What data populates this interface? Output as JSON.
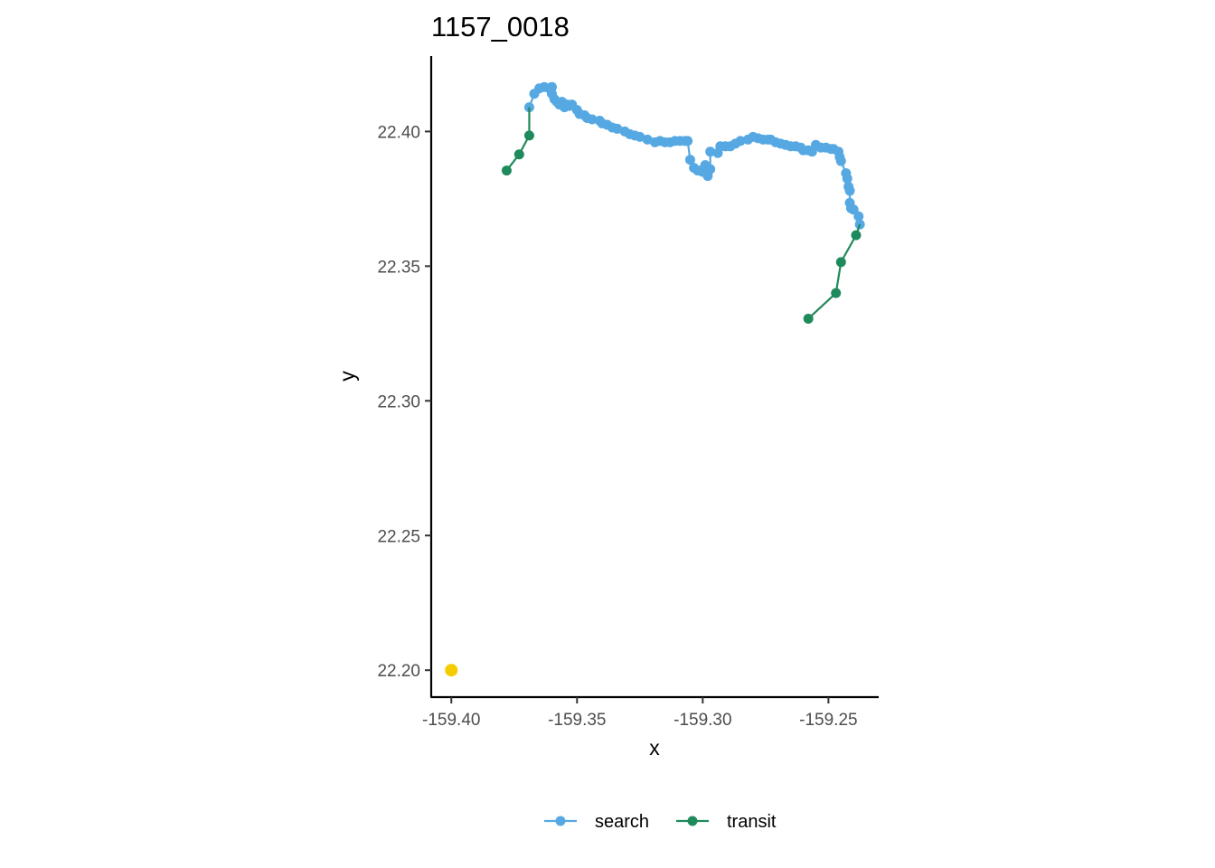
{
  "chart_data": {
    "type": "scatter",
    "title": "1157_0018",
    "xlabel": "x",
    "ylabel": "y",
    "xlim": [
      -159.408,
      -159.23
    ],
    "ylim": [
      22.19,
      22.428
    ],
    "x_ticks": [
      {
        "value": -159.4,
        "label": "-159.40"
      },
      {
        "value": -159.35,
        "label": "-159.35"
      },
      {
        "value": -159.3,
        "label": "-159.30"
      },
      {
        "value": -159.25,
        "label": "-159.25"
      }
    ],
    "y_ticks": [
      {
        "value": 22.2,
        "label": "22.20"
      },
      {
        "value": 22.25,
        "label": "22.25"
      },
      {
        "value": 22.3,
        "label": "22.30"
      },
      {
        "value": 22.35,
        "label": "22.35"
      },
      {
        "value": 22.4,
        "label": "22.40"
      }
    ],
    "grid": false,
    "legend_position": "bottom",
    "series": [
      {
        "name": "search",
        "color": "#56a8e2",
        "connected": true,
        "points": [
          [
            -159.369,
            22.409
          ],
          [
            -159.367,
            22.414
          ],
          [
            -159.365,
            22.416
          ],
          [
            -159.363,
            22.4165
          ],
          [
            -159.361,
            22.416
          ],
          [
            -159.36,
            22.4165
          ],
          [
            -159.36,
            22.414
          ],
          [
            -159.359,
            22.412
          ],
          [
            -159.358,
            22.411
          ],
          [
            -159.357,
            22.41
          ],
          [
            -159.356,
            22.411
          ],
          [
            -159.355,
            22.409
          ],
          [
            -159.354,
            22.41
          ],
          [
            -159.353,
            22.4095
          ],
          [
            -159.352,
            22.41
          ],
          [
            -159.35,
            22.408
          ],
          [
            -159.349,
            22.4065
          ],
          [
            -159.347,
            22.406
          ],
          [
            -159.346,
            22.405
          ],
          [
            -159.344,
            22.4045
          ],
          [
            -159.341,
            22.404
          ],
          [
            -159.34,
            22.403
          ],
          [
            -159.338,
            22.4025
          ],
          [
            -159.336,
            22.4015
          ],
          [
            -159.334,
            22.401
          ],
          [
            -159.331,
            22.4
          ],
          [
            -159.329,
            22.399
          ],
          [
            -159.327,
            22.3985
          ],
          [
            -159.325,
            22.398
          ],
          [
            -159.322,
            22.397
          ],
          [
            -159.319,
            22.396
          ],
          [
            -159.317,
            22.3965
          ],
          [
            -159.315,
            22.396
          ],
          [
            -159.313,
            22.396
          ],
          [
            -159.311,
            22.3965
          ],
          [
            -159.309,
            22.3965
          ],
          [
            -159.307,
            22.3965
          ],
          [
            -159.306,
            22.3965
          ],
          [
            -159.305,
            22.3895
          ],
          [
            -159.3035,
            22.3865
          ],
          [
            -159.302,
            22.3855
          ],
          [
            -159.301,
            22.3855
          ],
          [
            -159.3,
            22.385
          ],
          [
            -159.299,
            22.3875
          ],
          [
            -159.298,
            22.3835
          ],
          [
            -159.297,
            22.386
          ],
          [
            -159.297,
            22.3925
          ],
          [
            -159.294,
            22.392
          ],
          [
            -159.293,
            22.3945
          ],
          [
            -159.291,
            22.3945
          ],
          [
            -159.289,
            22.3945
          ],
          [
            -159.287,
            22.3955
          ],
          [
            -159.285,
            22.3965
          ],
          [
            -159.282,
            22.397
          ],
          [
            -159.28,
            22.398
          ],
          [
            -159.278,
            22.3975
          ],
          [
            -159.276,
            22.397
          ],
          [
            -159.274,
            22.397
          ],
          [
            -159.273,
            22.397
          ],
          [
            -159.271,
            22.396
          ],
          [
            -159.269,
            22.3955
          ],
          [
            -159.267,
            22.395
          ],
          [
            -159.265,
            22.3945
          ],
          [
            -159.263,
            22.3945
          ],
          [
            -159.261,
            22.394
          ],
          [
            -159.26,
            22.393
          ],
          [
            -159.258,
            22.393
          ],
          [
            -159.2565,
            22.3925
          ],
          [
            -159.255,
            22.395
          ],
          [
            -159.253,
            22.394
          ],
          [
            -159.251,
            22.394
          ],
          [
            -159.249,
            22.3935
          ],
          [
            -159.248,
            22.3935
          ],
          [
            -159.246,
            22.3925
          ],
          [
            -159.2455,
            22.3905
          ],
          [
            -159.245,
            22.389
          ],
          [
            -159.243,
            22.3845
          ],
          [
            -159.2425,
            22.3825
          ],
          [
            -159.242,
            22.3795
          ],
          [
            -159.2415,
            22.378
          ],
          [
            -159.2415,
            22.3735
          ],
          [
            -159.241,
            22.3715
          ],
          [
            -159.24,
            22.371
          ],
          [
            -159.238,
            22.3685
          ],
          [
            -159.2375,
            22.3655
          ]
        ]
      },
      {
        "name": "transit",
        "color": "#1f8a5b",
        "connected": true,
        "segments": [
          [
            [
              -159.378,
              22.3855
            ],
            [
              -159.373,
              22.3915
            ],
            [
              -159.369,
              22.3985
            ],
            [
              -159.369,
              22.409
            ]
          ],
          [
            [
              -159.2375,
              22.3655
            ],
            [
              -159.239,
              22.3615
            ],
            [
              -159.245,
              22.3515
            ],
            [
              -159.247,
              22.34
            ],
            [
              -159.258,
              22.3305
            ]
          ]
        ],
        "points": [
          [
            -159.378,
            22.3855
          ],
          [
            -159.373,
            22.3915
          ],
          [
            -159.369,
            22.3985
          ],
          [
            -159.239,
            22.3615
          ],
          [
            -159.245,
            22.3515
          ],
          [
            -159.247,
            22.34
          ],
          [
            -159.258,
            22.3305
          ]
        ]
      }
    ],
    "highlight_points": [
      {
        "x": -159.4,
        "y": 22.2,
        "color": "#f5cc00"
      }
    ],
    "legend": [
      {
        "label": "search",
        "color": "#56a8e2"
      },
      {
        "label": "transit",
        "color": "#1f8a5b"
      }
    ]
  }
}
